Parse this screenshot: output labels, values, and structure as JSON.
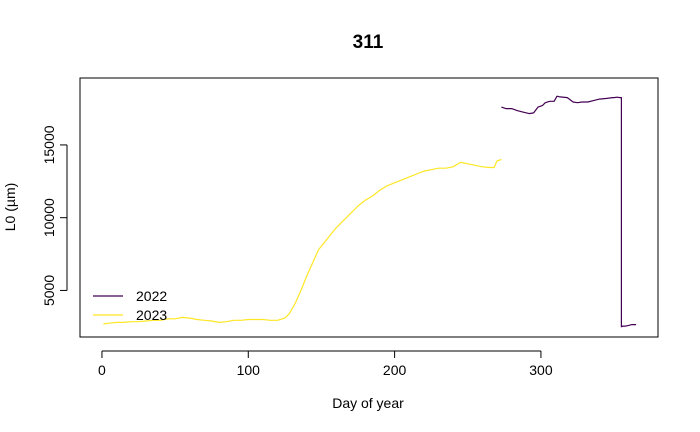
{
  "chart_data": {
    "type": "line",
    "title": "311",
    "xlabel": "Day of year",
    "ylabel": "L0 (µm)",
    "xlim": [
      -15,
      380
    ],
    "ylim": [
      1800,
      19600
    ],
    "xticks": [
      0,
      100,
      200,
      300
    ],
    "yticks": [
      5000,
      10000,
      15000
    ],
    "legend_position": "bottom-left",
    "series": [
      {
        "name": "2022",
        "color": "#440154",
        "x": [
          273,
          276,
          280,
          284,
          288,
          292,
          295,
          298,
          301,
          303,
          306,
          309,
          311,
          313,
          318,
          322,
          325,
          328,
          332,
          336,
          340,
          345,
          349,
          350,
          352,
          354,
          355,
          355,
          356,
          358,
          360,
          362,
          365
        ],
        "y": [
          17600,
          17500,
          17500,
          17350,
          17250,
          17150,
          17200,
          17600,
          17700,
          17900,
          18000,
          18000,
          18350,
          18300,
          18250,
          17950,
          17900,
          17950,
          17950,
          18050,
          18150,
          18200,
          18250,
          18250,
          18280,
          18250,
          18250,
          2500,
          2550,
          2550,
          2600,
          2650,
          2650
        ]
      },
      {
        "name": "2023",
        "color": "#fde725",
        "x": [
          1,
          5,
          10,
          15,
          20,
          25,
          30,
          35,
          40,
          45,
          50,
          55,
          60,
          65,
          70,
          75,
          80,
          85,
          90,
          95,
          100,
          105,
          110,
          115,
          120,
          125,
          128,
          132,
          136,
          140,
          144,
          148,
          152,
          156,
          160,
          165,
          170,
          175,
          180,
          185,
          190,
          195,
          200,
          205,
          210,
          215,
          220,
          225,
          230,
          235,
          240,
          245,
          250,
          255,
          260,
          265,
          268,
          270,
          273
        ],
        "y": [
          2700,
          2750,
          2800,
          2800,
          2850,
          2850,
          2900,
          2950,
          2950,
          3050,
          3050,
          3150,
          3100,
          3000,
          2950,
          2900,
          2800,
          2850,
          2950,
          2950,
          3000,
          3000,
          3000,
          2950,
          2950,
          3100,
          3400,
          4100,
          5000,
          6000,
          6900,
          7800,
          8300,
          8800,
          9300,
          9800,
          10300,
          10800,
          11200,
          11500,
          11900,
          12200,
          12400,
          12600,
          12800,
          13000,
          13200,
          13300,
          13400,
          13400,
          13500,
          13800,
          13700,
          13600,
          13500,
          13450,
          13450,
          13900,
          14000
        ]
      }
    ]
  }
}
